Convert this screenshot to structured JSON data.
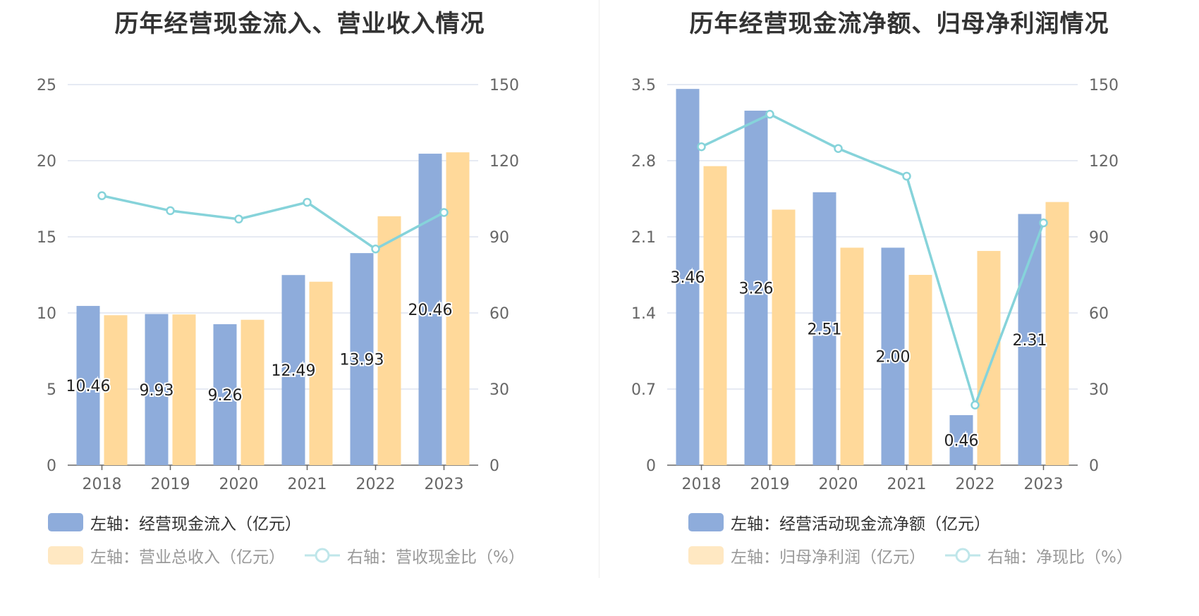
{
  "charts": [
    {
      "title": "历年经营现金流入、营业收入情况",
      "legend": {
        "bar1": "左轴：经营现金流入（亿元）",
        "bar2": "左轴：营业总收入（亿元）",
        "line": "右轴：营收现金比（%）"
      }
    },
    {
      "title": "历年经营现金流净额、归母净利润情况",
      "legend": {
        "bar1": "左轴：经营活动现金流净额（亿元）",
        "bar2": "左轴：归母净利润（亿元）",
        "line": "右轴：净现比（%）"
      }
    }
  ],
  "colors": {
    "bar1": "#8eacdb",
    "bar2": "#ffd99a",
    "line": "#86d3da",
    "grid": "#dde3ef",
    "axis": "#666666"
  },
  "chart_data": [
    {
      "type": "bar",
      "title": "历年经营现金流入、营业收入情况",
      "categories": [
        "2018",
        "2019",
        "2020",
        "2021",
        "2022",
        "2023"
      ],
      "series": [
        {
          "name": "左轴：经营现金流入（亿元）",
          "axis": "left",
          "values": [
            10.46,
            9.93,
            9.26,
            12.49,
            13.93,
            20.46
          ],
          "labels": [
            "10.46",
            "9.93",
            "9.26",
            "12.49",
            "13.93",
            "20.46"
          ]
        },
        {
          "name": "左轴：营业总收入（亿元）",
          "axis": "left",
          "values": [
            9.85,
            9.9,
            9.55,
            12.05,
            16.35,
            20.55
          ]
        },
        {
          "name": "右轴：营收现金比（%）",
          "axis": "right",
          "type": "line",
          "values": [
            106.2,
            100.3,
            97.0,
            103.6,
            85.2,
            99.6
          ]
        }
      ],
      "left_ticks": [
        "0",
        "5",
        "10",
        "15",
        "20",
        "25"
      ],
      "right_ticks": [
        "0",
        "30",
        "60",
        "90",
        "120",
        "150"
      ],
      "ylim_left": [
        0,
        25
      ],
      "ylim_right": [
        0,
        150
      ],
      "grid": true,
      "legend_position": "bottom-left"
    },
    {
      "type": "bar",
      "title": "历年经营现金流净额、归母净利润情况",
      "categories": [
        "2018",
        "2019",
        "2020",
        "2021",
        "2022",
        "2023"
      ],
      "series": [
        {
          "name": "左轴：经营活动现金流净额（亿元）",
          "axis": "left",
          "values": [
            3.46,
            3.26,
            2.51,
            2.0,
            0.46,
            2.31
          ],
          "labels": [
            "3.46",
            "3.26",
            "2.51",
            "2.00",
            "0.46",
            "2.31"
          ]
        },
        {
          "name": "左轴：归母净利润（亿元）",
          "axis": "left",
          "values": [
            2.75,
            2.35,
            2.0,
            1.75,
            1.97,
            2.42
          ]
        },
        {
          "name": "右轴：净现比（%）",
          "axis": "right",
          "type": "line",
          "values": [
            125.5,
            138.3,
            124.8,
            113.9,
            23.7,
            95.5
          ]
        }
      ],
      "left_ticks": [
        "0",
        "0.7",
        "1.4",
        "2.1",
        "2.8",
        "3.5"
      ],
      "right_ticks": [
        "0",
        "30",
        "60",
        "90",
        "120",
        "150"
      ],
      "ylim_left": [
        0,
        3.5
      ],
      "ylim_right": [
        0,
        150
      ],
      "grid": true,
      "legend_position": "bottom-left"
    }
  ]
}
